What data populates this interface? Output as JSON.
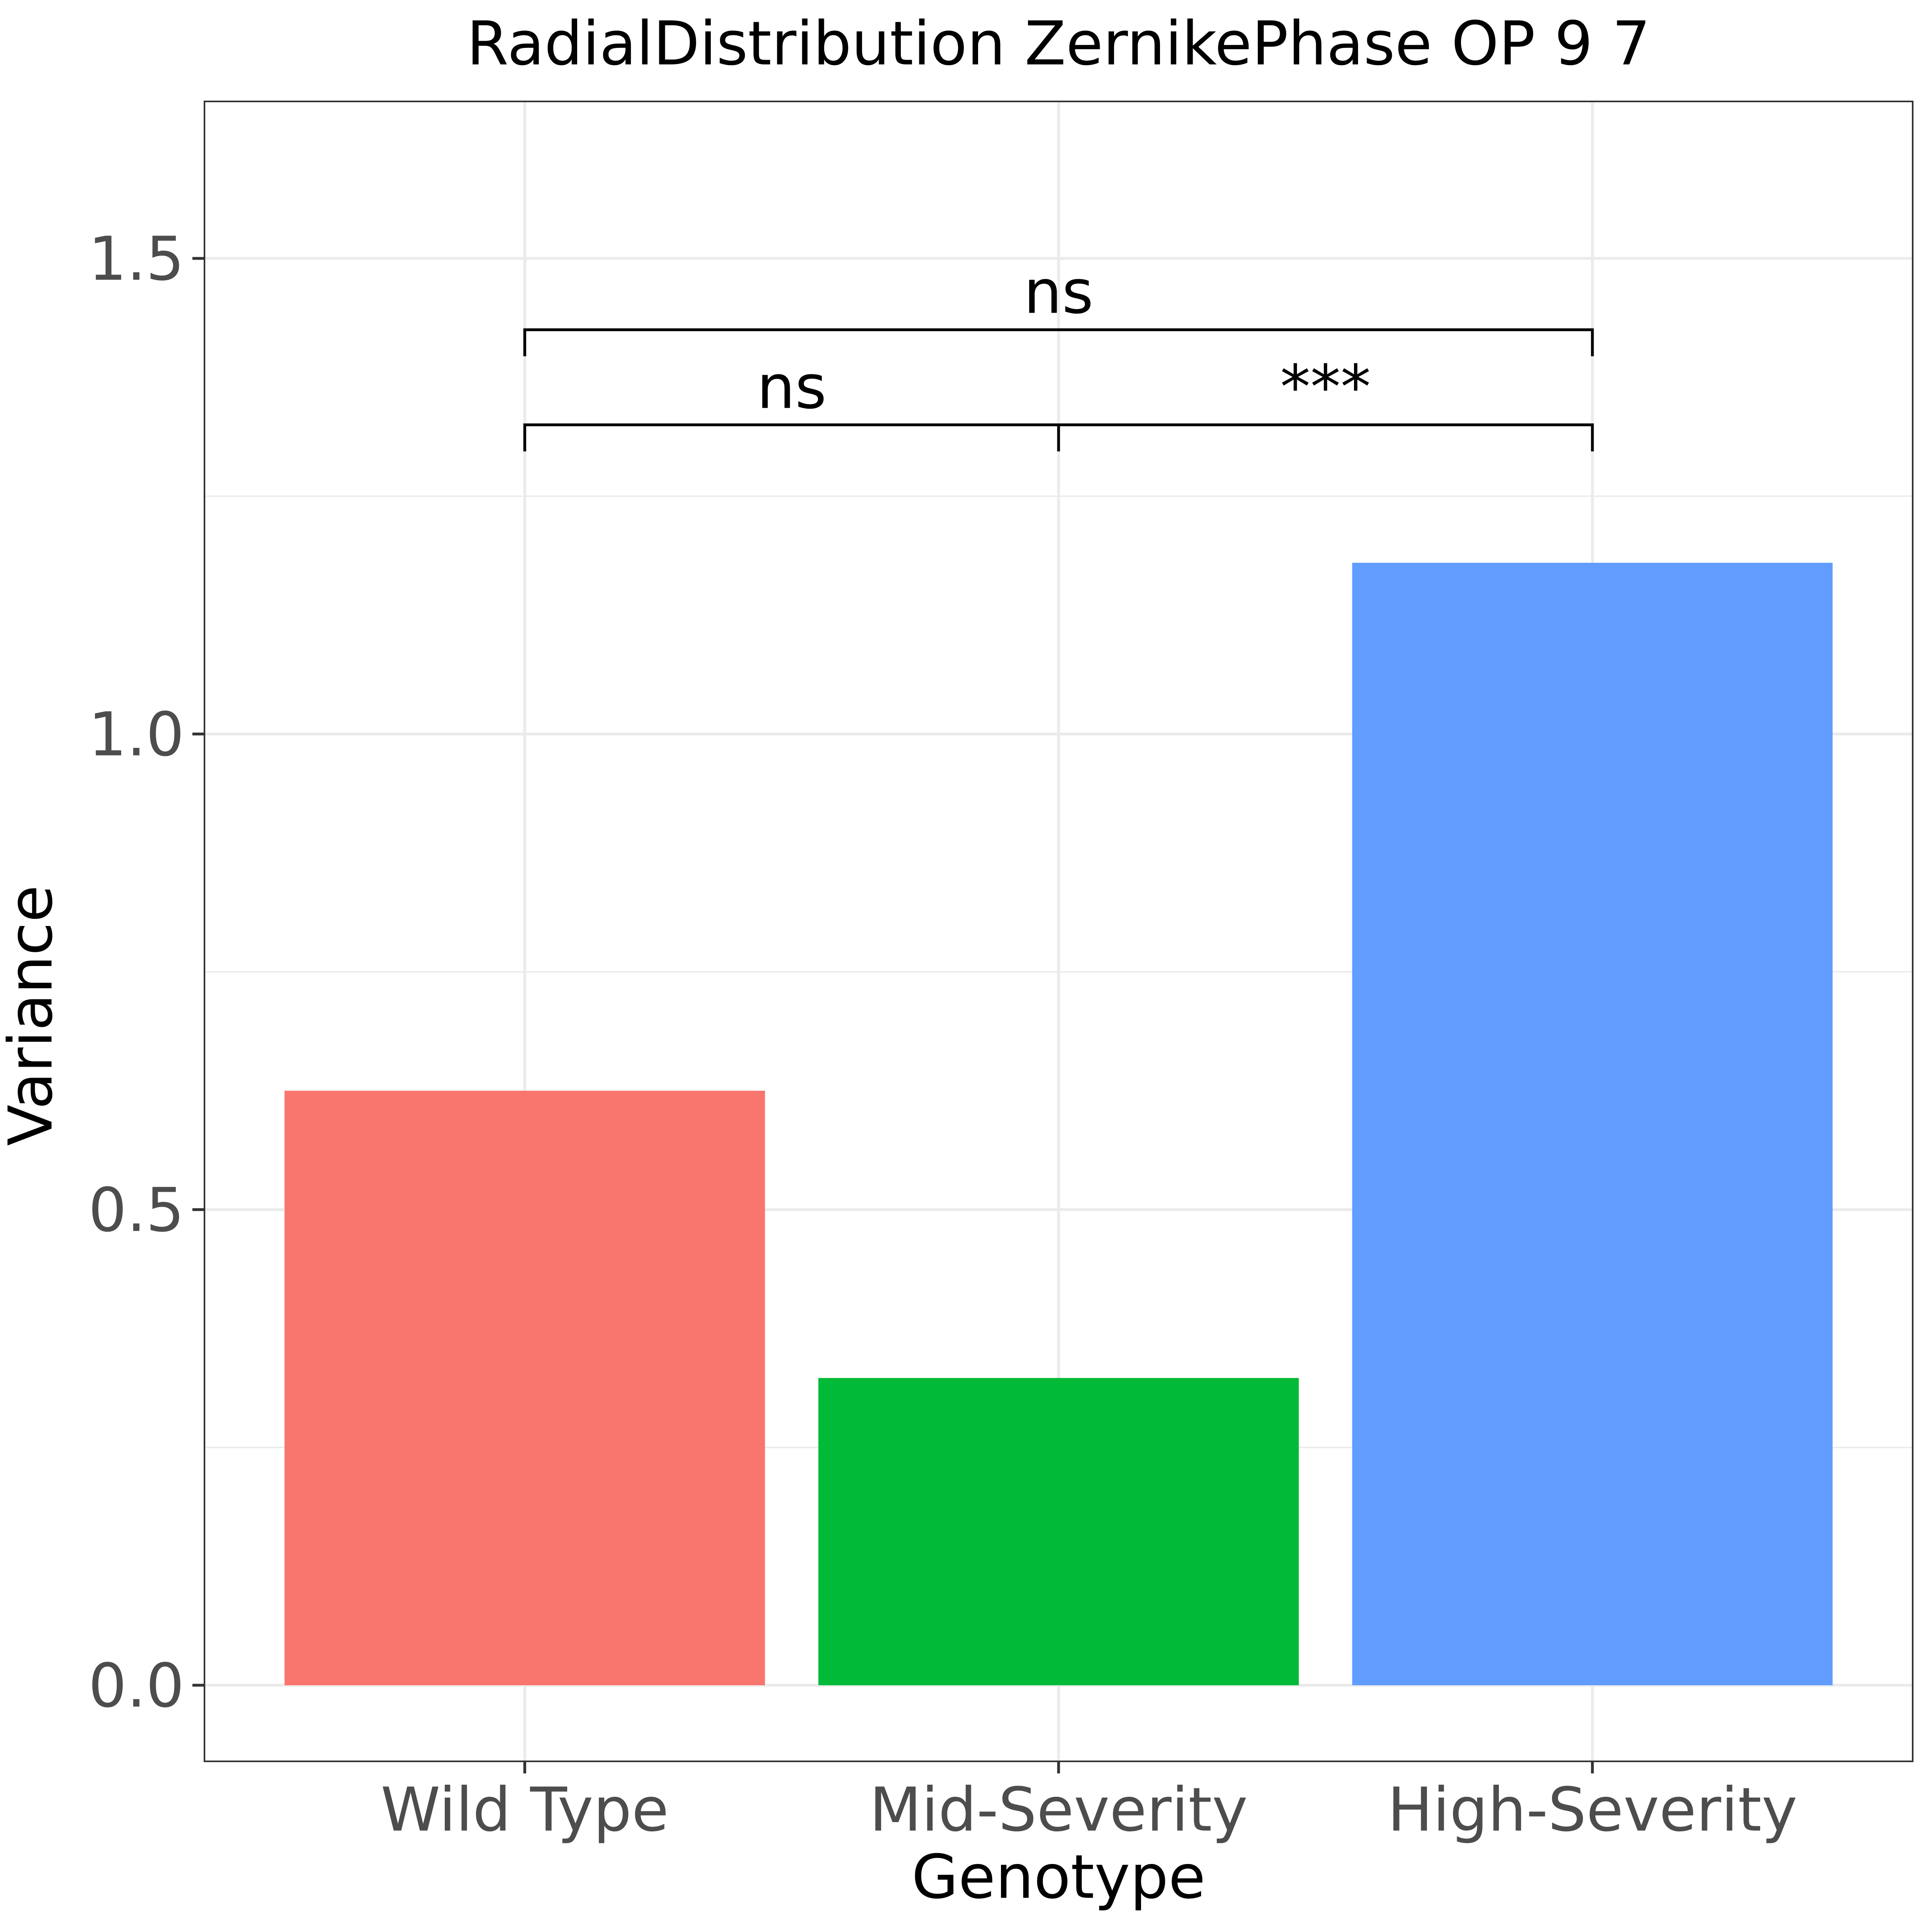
{
  "chart_data": {
    "type": "bar",
    "title": "RadialDistribution ZernikePhase OP 9 7",
    "xlabel": "Genotype",
    "ylabel": "Variance",
    "categories": [
      "Wild Type",
      "Mid-Severity",
      "High-Severity"
    ],
    "values": [
      0.625,
      0.323,
      1.18
    ],
    "colors": [
      "#F8766D",
      "#00BA38",
      "#619CFF"
    ],
    "ylim": [
      -0.08,
      1.665
    ],
    "yticks": [
      0.0,
      0.5,
      1.0,
      1.5
    ],
    "ytick_labels": [
      "0.0",
      "0.5",
      "1.0",
      "1.5"
    ],
    "grid": true,
    "legend": "none",
    "comparisons": [
      {
        "from": 0,
        "to": 1,
        "y": 1.325,
        "label": "ns"
      },
      {
        "from": 1,
        "to": 2,
        "y": 1.325,
        "label": "***"
      },
      {
        "from": 0,
        "to": 2,
        "y": 1.425,
        "label": "ns"
      }
    ]
  }
}
